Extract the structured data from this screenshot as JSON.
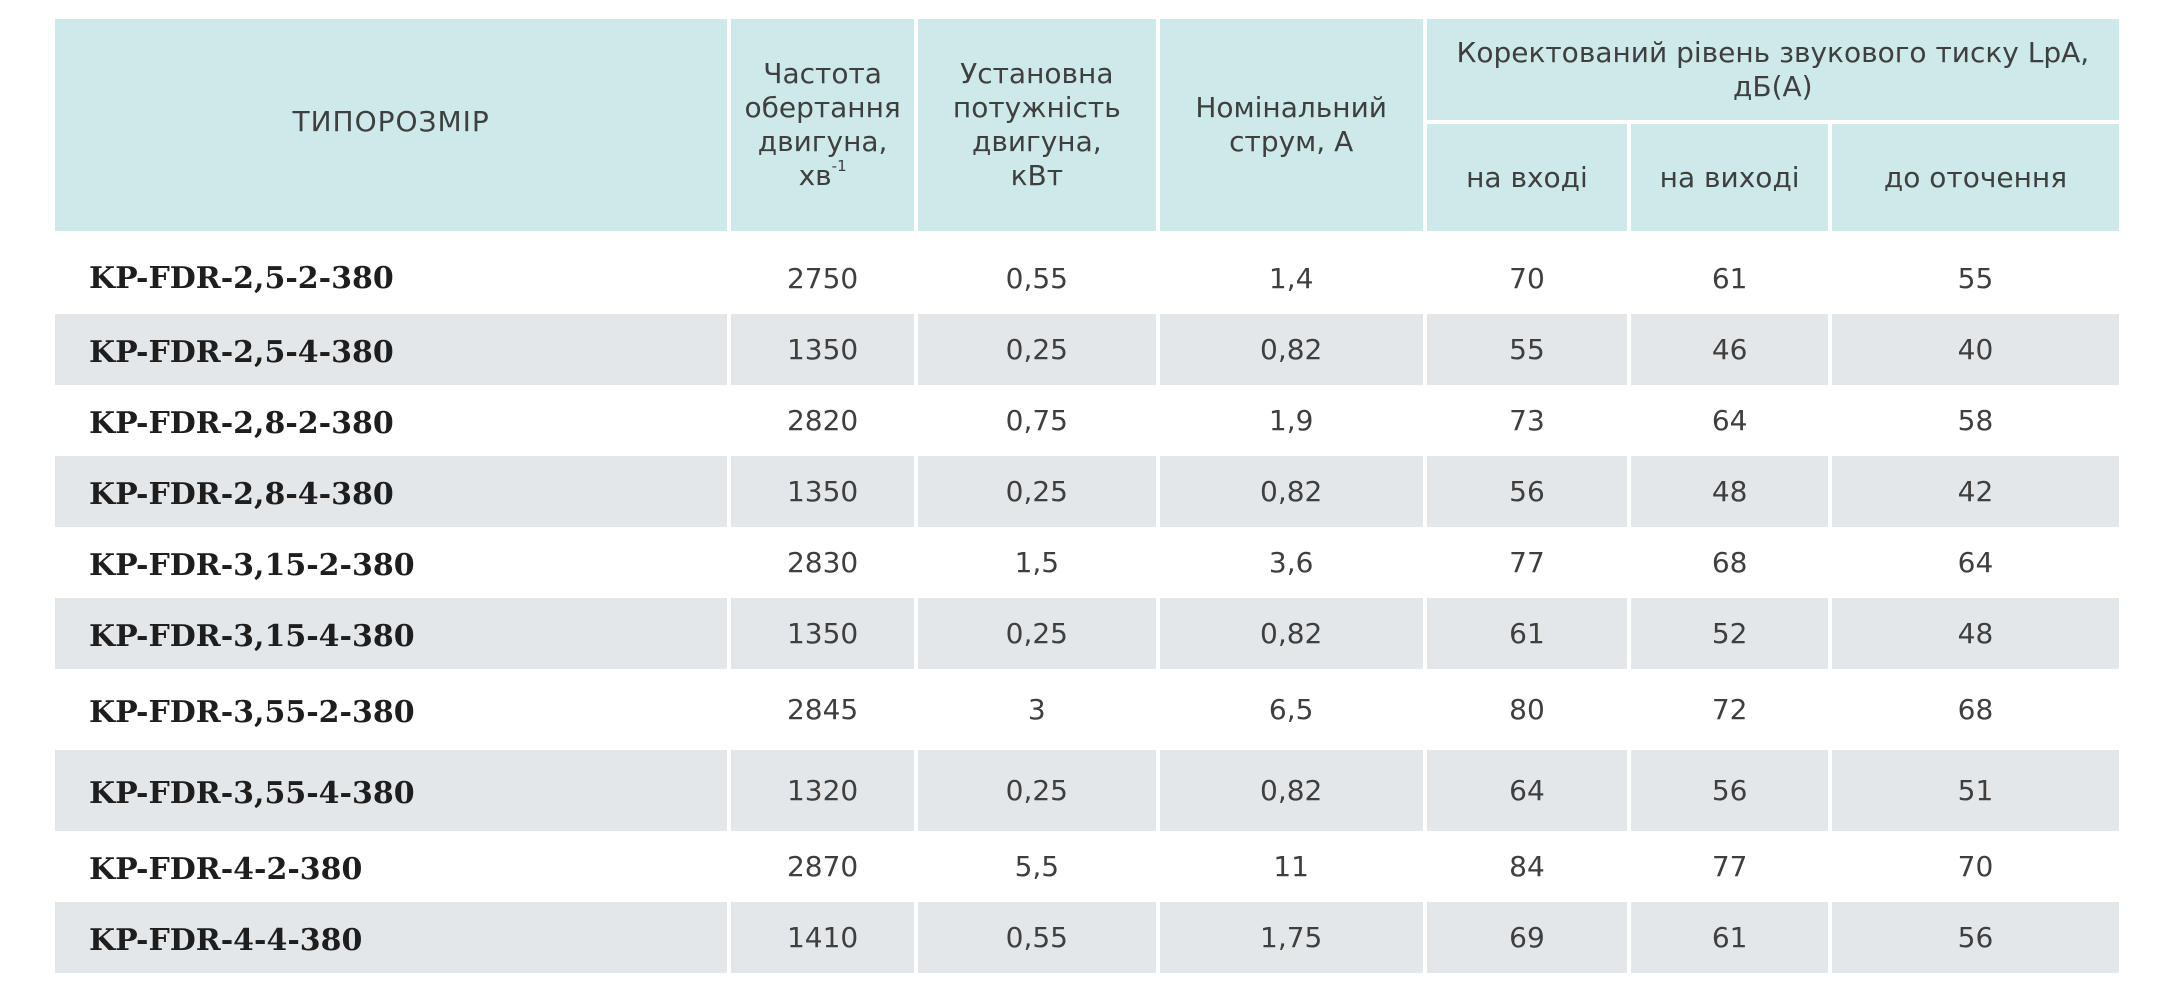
{
  "table": {
    "headers": {
      "model": "ТИПОРОЗМІР",
      "speed_line1": "Частота",
      "speed_line2": "обертання",
      "speed_line3": "двигуна,",
      "speed_unit": "хв",
      "speed_sup": "-1",
      "power_line1": "Установна",
      "power_line2": "потужність",
      "power_line3": "двигуна,",
      "power_line4": "кВт",
      "current_line1": "Номінальний",
      "current_line2": "струм, А",
      "sound_line1": "Коректований рівень звукового тиску LpA,",
      "sound_line2": "дБ(А)",
      "inlet": "на вході",
      "outlet": "на виході",
      "ambient": "до оточення"
    },
    "rows": [
      {
        "model": "KP-FDR-2,5-2-380",
        "speed": "2750",
        "power": "0,55",
        "current": "1,4",
        "inlet": "70",
        "outlet": "61",
        "ambient": "55"
      },
      {
        "model": "KP-FDR-2,5-4-380",
        "speed": "1350",
        "power": "0,25",
        "current": "0,82",
        "inlet": "55",
        "outlet": "46",
        "ambient": "40"
      },
      {
        "model": "KP-FDR-2,8-2-380",
        "speed": "2820",
        "power": "0,75",
        "current": "1,9",
        "inlet": "73",
        "outlet": "64",
        "ambient": "58"
      },
      {
        "model": "KP-FDR-2,8-4-380",
        "speed": "1350",
        "power": "0,25",
        "current": "0,82",
        "inlet": "56",
        "outlet": "48",
        "ambient": "42"
      },
      {
        "model": "KP-FDR-3,15-2-380",
        "speed": "2830",
        "power": "1,5",
        "current": "3,6",
        "inlet": "77",
        "outlet": "68",
        "ambient": "64"
      },
      {
        "model": "KP-FDR-3,15-4-380",
        "speed": "1350",
        "power": "0,25",
        "current": "0,82",
        "inlet": "61",
        "outlet": "52",
        "ambient": "48"
      },
      {
        "model": "KP-FDR-3,55-2-380",
        "speed": "2845",
        "power": "3",
        "current": "6,5",
        "inlet": "80",
        "outlet": "72",
        "ambient": "68"
      },
      {
        "model": "KP-FDR-3,55-4-380",
        "speed": "1320",
        "power": "0,25",
        "current": "0,82",
        "inlet": "64",
        "outlet": "56",
        "ambient": "51"
      },
      {
        "model": "KP-FDR-4-2-380",
        "speed": "2870",
        "power": "5,5",
        "current": "11",
        "inlet": "84",
        "outlet": "77",
        "ambient": "70"
      },
      {
        "model": "KP-FDR-4-4-380",
        "speed": "1410",
        "power": "0,55",
        "current": "1,75",
        "inlet": "69",
        "outlet": "61",
        "ambient": "56"
      }
    ]
  },
  "colors": {
    "header_bg": "#cde9e9",
    "stripe_bg": "#e4e7ea",
    "text": "#3f3f3f"
  }
}
